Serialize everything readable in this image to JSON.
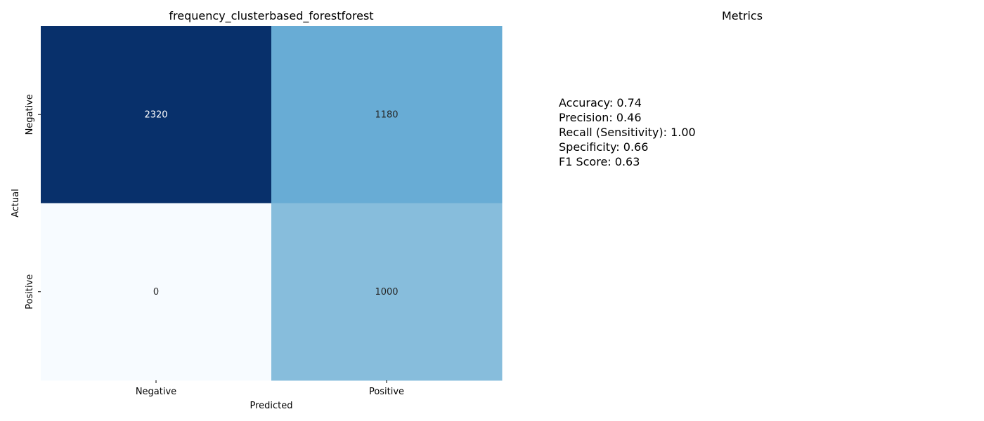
{
  "chart_data": [
    {
      "type": "heatmap",
      "title": "frequency_clusterbased_forestforest",
      "xlabel": "Predicted",
      "ylabel": "Actual",
      "x_categories": [
        "Negative",
        "Positive"
      ],
      "y_categories": [
        "Negative",
        "Positive"
      ],
      "values": [
        [
          2320,
          1180
        ],
        [
          0,
          1000
        ]
      ],
      "colormap": "Blues",
      "colorbar": false
    }
  ],
  "metrics_panel": {
    "title": "Metrics",
    "lines": [
      "Accuracy: 0.74",
      "Precision: 0.46",
      "Recall (Sensitivity): 1.00",
      "Specificity: 0.66",
      "F1 Score: 0.63"
    ]
  },
  "colors": {
    "cell_dark": "#08306b",
    "cell_mid": "#68acd5",
    "cell_light": "#87bcdc",
    "cell_lightest": "#f7fbff",
    "text_on_dark": "#ffffff",
    "text_on_light": "#262626"
  }
}
